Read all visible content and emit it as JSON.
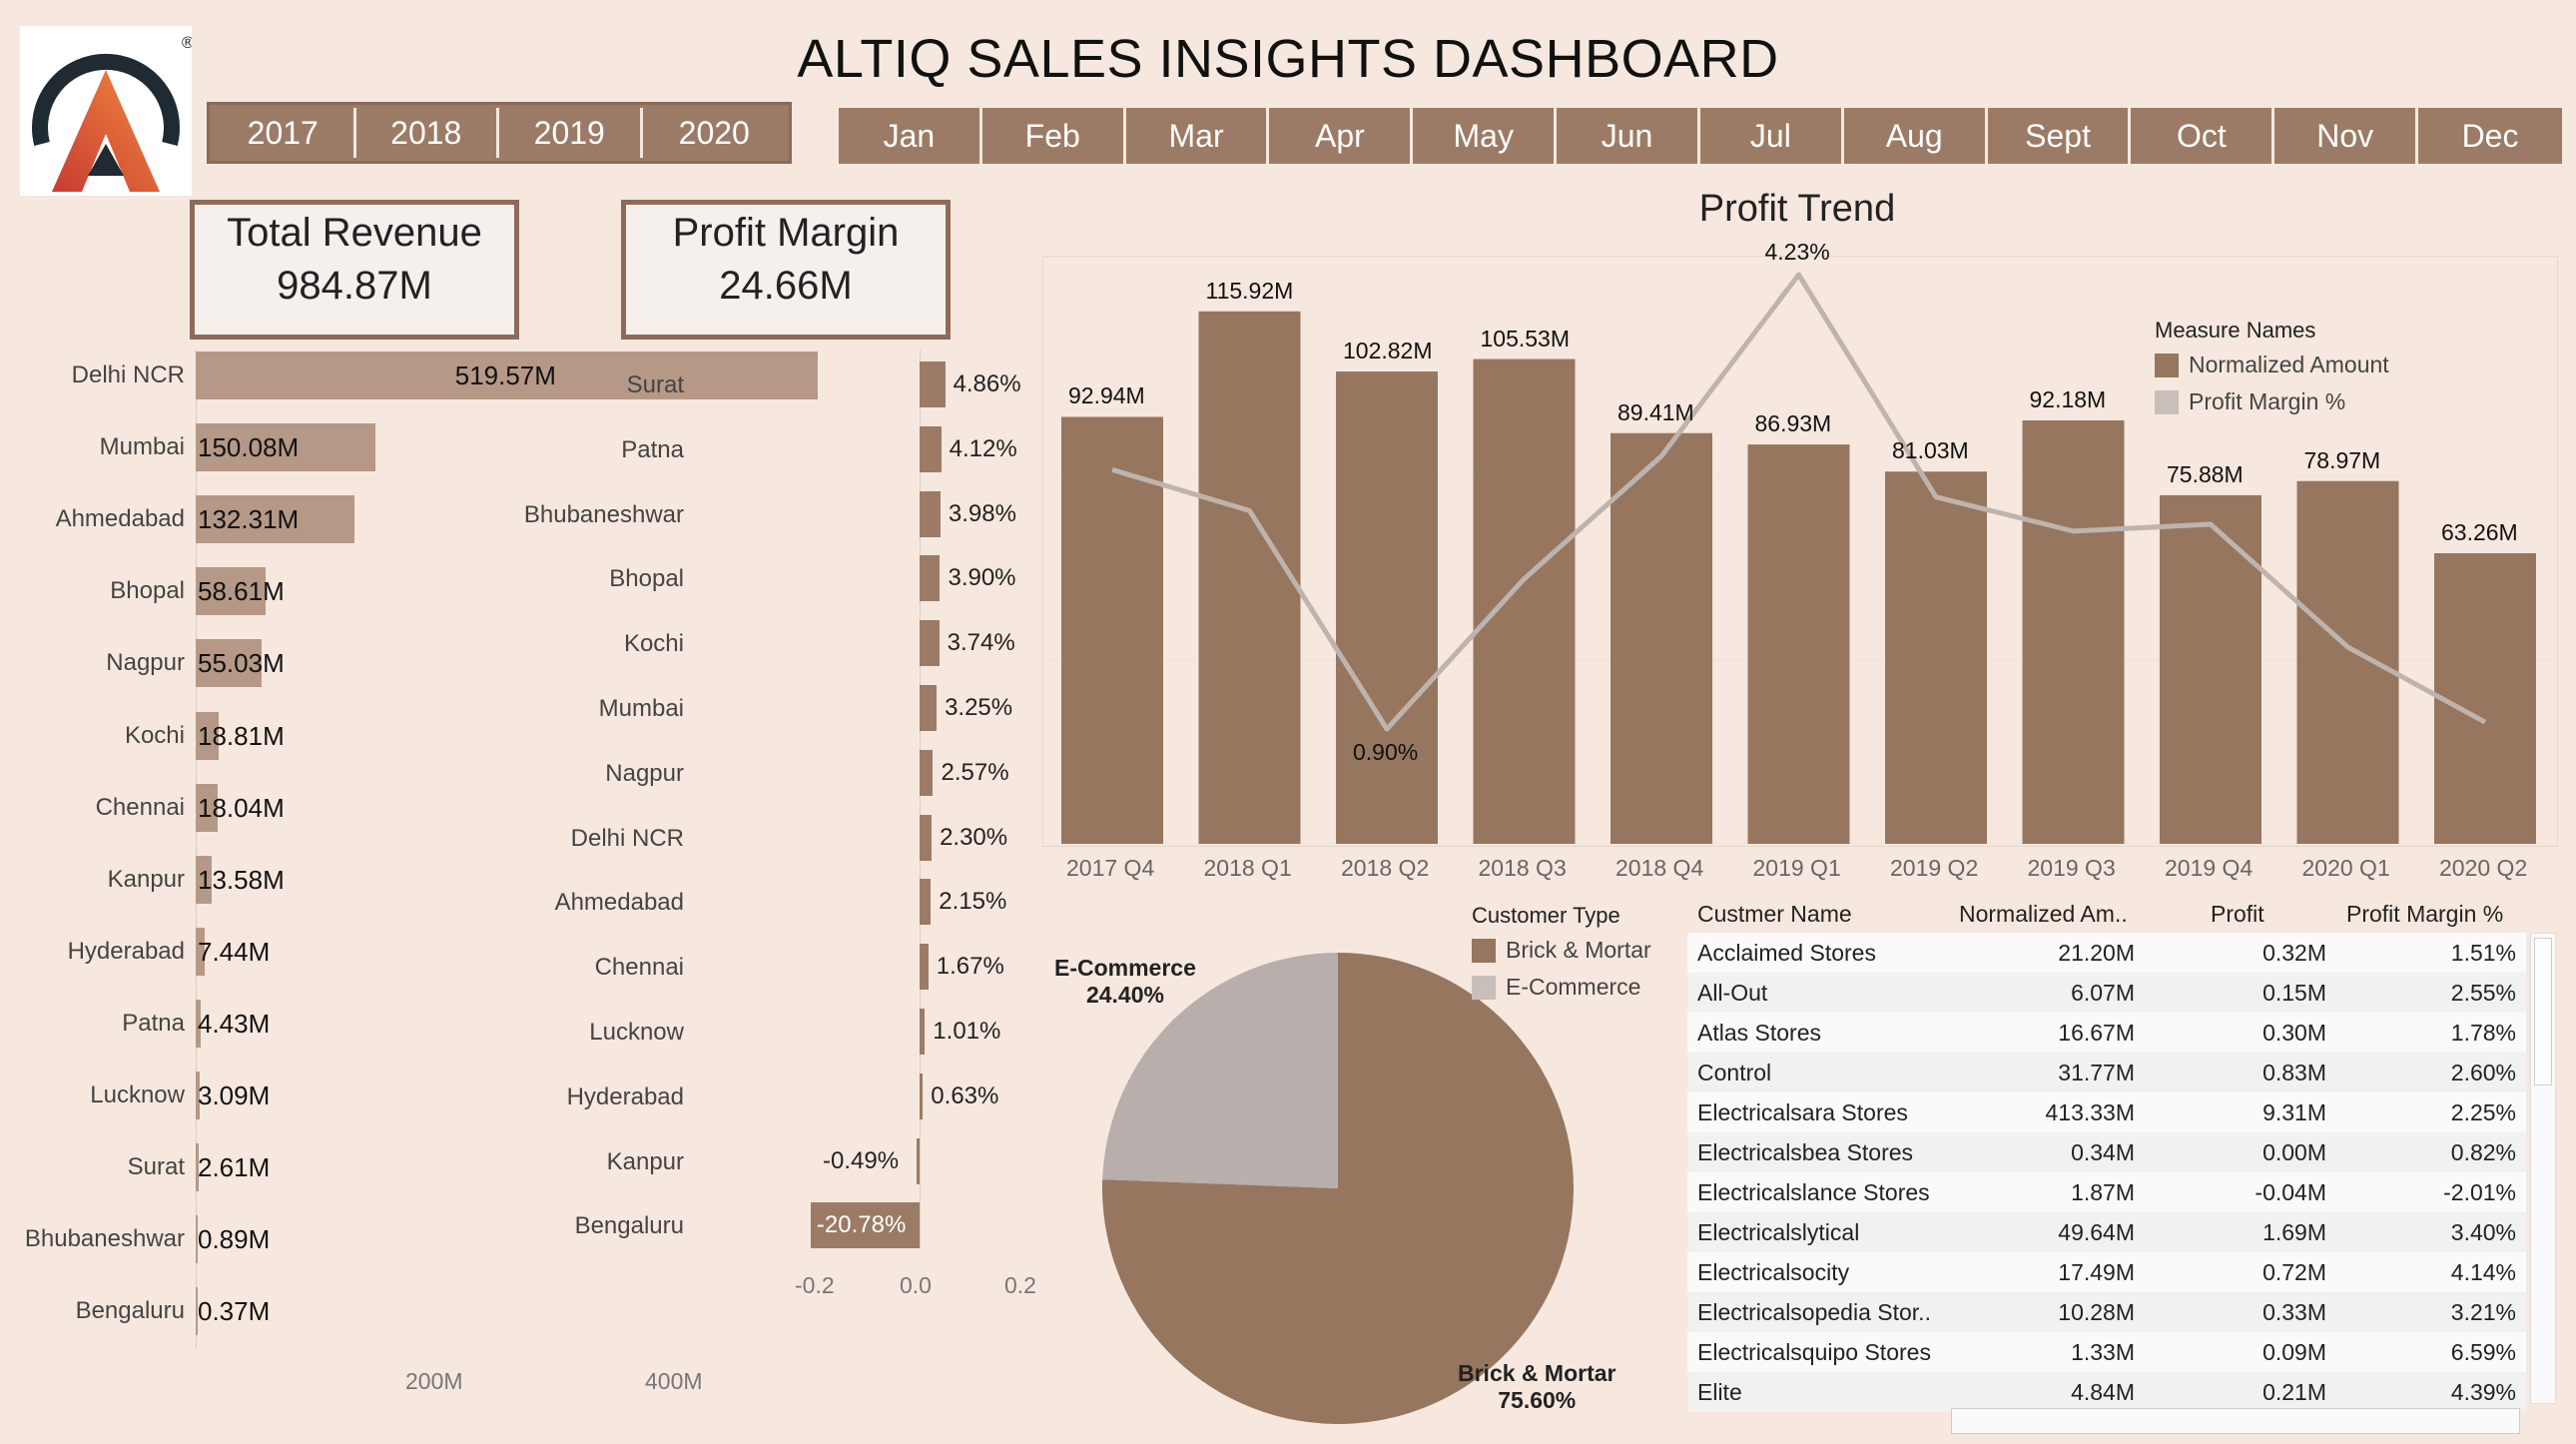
{
  "title": "ALTIQ SALES INSIGHTS DASHBOARD",
  "logo": {
    "icon": "altiq-logo-icon",
    "mark": "®"
  },
  "filters": {
    "years": [
      "2017",
      "2018",
      "2019",
      "2020"
    ],
    "months": [
      "Jan",
      "Feb",
      "Mar",
      "Apr",
      "May",
      "Jun",
      "Jul",
      "Aug",
      "Sept",
      "Oct",
      "Nov",
      "Dec"
    ]
  },
  "kpis": {
    "revenue": {
      "label": "Total Revenue",
      "value": "984.87M"
    },
    "margin": {
      "label": "Profit Margin",
      "value": "24.66M"
    }
  },
  "revenue_by_market": {
    "axis_ticks": [
      "200M",
      "400M"
    ],
    "items": [
      {
        "name": "Delhi NCR",
        "value": 519.57,
        "label": "519.57M"
      },
      {
        "name": "Mumbai",
        "value": 150.08,
        "label": "150.08M"
      },
      {
        "name": "Ahmedabad",
        "value": 132.31,
        "label": "132.31M"
      },
      {
        "name": "Bhopal",
        "value": 58.61,
        "label": "58.61M"
      },
      {
        "name": "Nagpur",
        "value": 55.03,
        "label": "55.03M"
      },
      {
        "name": "Kochi",
        "value": 18.81,
        "label": "18.81M"
      },
      {
        "name": "Chennai",
        "value": 18.04,
        "label": "18.04M"
      },
      {
        "name": "Kanpur",
        "value": 13.58,
        "label": "13.58M"
      },
      {
        "name": "Hyderabad",
        "value": 7.44,
        "label": "7.44M"
      },
      {
        "name": "Patna",
        "value": 4.43,
        "label": "4.43M"
      },
      {
        "name": "Lucknow",
        "value": 3.09,
        "label": "3.09M"
      },
      {
        "name": "Surat",
        "value": 2.61,
        "label": "2.61M"
      },
      {
        "name": "Bhubaneshwar",
        "value": 0.89,
        "label": "0.89M"
      },
      {
        "name": "Bengaluru",
        "value": 0.37,
        "label": "0.37M"
      }
    ]
  },
  "margin_by_market": {
    "axis_ticks": [
      "-0.2",
      "0.0",
      "0.2"
    ],
    "items": [
      {
        "name": "Surat",
        "value": 4.86,
        "label": "4.86%"
      },
      {
        "name": "Patna",
        "value": 4.12,
        "label": "4.12%"
      },
      {
        "name": "Bhubaneshwar",
        "value": 3.98,
        "label": "3.98%"
      },
      {
        "name": "Bhopal",
        "value": 3.9,
        "label": "3.90%"
      },
      {
        "name": "Kochi",
        "value": 3.74,
        "label": "3.74%"
      },
      {
        "name": "Mumbai",
        "value": 3.25,
        "label": "3.25%"
      },
      {
        "name": "Nagpur",
        "value": 2.57,
        "label": "2.57%"
      },
      {
        "name": "Delhi NCR",
        "value": 2.3,
        "label": "2.30%"
      },
      {
        "name": "Ahmedabad",
        "value": 2.15,
        "label": "2.15%"
      },
      {
        "name": "Chennai",
        "value": 1.67,
        "label": "1.67%"
      },
      {
        "name": "Lucknow",
        "value": 1.01,
        "label": "1.01%"
      },
      {
        "name": "Hyderabad",
        "value": 0.63,
        "label": "0.63%"
      },
      {
        "name": "Kanpur",
        "value": -0.49,
        "label": "-0.49%"
      },
      {
        "name": "Bengaluru",
        "value": -20.78,
        "label": "-20.78%"
      }
    ]
  },
  "chart_data": [
    {
      "type": "bar",
      "title": "Profit Trend",
      "categories": [
        "2017 Q4",
        "2018 Q1",
        "2018 Q2",
        "2018 Q3",
        "2018 Q4",
        "2019 Q1",
        "2019 Q2",
        "2019 Q3",
        "2019 Q4",
        "2020 Q1",
        "2020 Q2"
      ],
      "legend_title": "Measure Names",
      "legend_position": "top-right",
      "series": [
        {
          "name": "Normalized Amount",
          "values": [
            92.94,
            115.92,
            102.82,
            105.53,
            89.41,
            86.93,
            81.03,
            92.18,
            75.88,
            78.97,
            63.26
          ],
          "labels": [
            "92.94M",
            "115.92M",
            "102.82M",
            "105.53M",
            "89.41M",
            "86.93M",
            "81.03M",
            "92.18M",
            "75.88M",
            "78.97M",
            "63.26M"
          ],
          "color": "#96765f"
        },
        {
          "name": "Profit Margin %",
          "type": "line",
          "values": [
            2.8,
            2.5,
            0.9,
            2.0,
            2.9,
            4.23,
            2.6,
            2.35,
            2.4,
            1.5,
            0.95
          ],
          "color": "#bfb3ad",
          "labels": {
            "2": "0.90%",
            "5": "4.23%"
          }
        }
      ]
    },
    {
      "type": "pie",
      "legend_title": "Customer Type",
      "slices": [
        {
          "name": "Brick & Mortar",
          "value": 75.6,
          "label": "75.60%",
          "color": "#96765f"
        },
        {
          "name": "E-Commerce",
          "value": 24.4,
          "label": "24.40%",
          "color": "#b8aeab"
        }
      ]
    }
  ],
  "customer_table": {
    "headers": [
      "Custmer Name",
      "Normalized Am..",
      "Profit",
      "Profit Margin %"
    ],
    "rows": [
      [
        "Acclaimed Stores",
        "21.20M",
        "0.32M",
        "1.51%"
      ],
      [
        "All-Out",
        "6.07M",
        "0.15M",
        "2.55%"
      ],
      [
        "Atlas Stores",
        "16.67M",
        "0.30M",
        "1.78%"
      ],
      [
        "Control",
        "31.77M",
        "0.83M",
        "2.60%"
      ],
      [
        "Electricalsara Stores",
        "413.33M",
        "9.31M",
        "2.25%"
      ],
      [
        "Electricalsbea Stores",
        "0.34M",
        "0.00M",
        "0.82%"
      ],
      [
        "Electricalslance Stores",
        "1.87M",
        "-0.04M",
        "-2.01%"
      ],
      [
        "Electricalslytical",
        "49.64M",
        "1.69M",
        "3.40%"
      ],
      [
        "Electricalsocity",
        "17.49M",
        "0.72M",
        "4.14%"
      ],
      [
        "Electricalsopedia Stor..",
        "10.28M",
        "0.33M",
        "3.21%"
      ],
      [
        "Electricalsquipo Stores",
        "1.33M",
        "0.09M",
        "6.59%"
      ],
      [
        "Elite",
        "4.84M",
        "0.21M",
        "4.39%"
      ]
    ]
  },
  "colors": {
    "background": "#f6e8df",
    "accent": "#9c7b66",
    "revenue_bar": "#b59886",
    "logo_orange": "#e8553a",
    "logo_dark": "#1f2a33"
  }
}
